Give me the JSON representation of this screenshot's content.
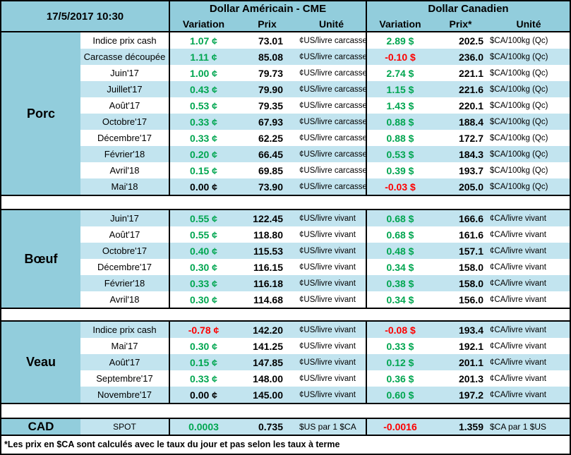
{
  "meta": {
    "datetime": "17/5/2017 10:30"
  },
  "columns": {
    "us_title": "Dollar Américain - CME",
    "ca_title": "Dollar Canadien",
    "variation": "Variation",
    "prix": "Prix",
    "prix_star": "Prix*",
    "unite": "Unité"
  },
  "colors": {
    "teal": "#92cddc",
    "stripe": "#c2e4ef",
    "positive": "#00a650",
    "negative": "#fe0000"
  },
  "sections": [
    {
      "label": "Porc",
      "rows": [
        {
          "label": "Indice prix cash",
          "us_var": "1.07 ¢",
          "us_prix": "73.01",
          "us_unit": "¢US/livre carcasse",
          "ca_var": "2.89 $",
          "ca_prix": "202.5",
          "ca_unit": "$CA/100kg (Qc)"
        },
        {
          "label": "Carcasse découpée",
          "us_var": "1.11 ¢",
          "us_prix": "85.08",
          "us_unit": "¢US/livre carcasse",
          "ca_var": "-0.10 $",
          "ca_prix": "236.0",
          "ca_unit": "$CA/100kg (Qc)"
        },
        {
          "label": "Juin'17",
          "us_var": "1.00 ¢",
          "us_prix": "79.73",
          "us_unit": "¢US/livre carcasse",
          "ca_var": "2.74 $",
          "ca_prix": "221.1",
          "ca_unit": "$CA/100kg (Qc)"
        },
        {
          "label": "Juillet'17",
          "us_var": "0.43 ¢",
          "us_prix": "79.90",
          "us_unit": "¢US/livre carcasse",
          "ca_var": "1.15 $",
          "ca_prix": "221.6",
          "ca_unit": "$CA/100kg (Qc)"
        },
        {
          "label": "Août'17",
          "us_var": "0.53 ¢",
          "us_prix": "79.35",
          "us_unit": "¢US/livre carcasse",
          "ca_var": "1.43 $",
          "ca_prix": "220.1",
          "ca_unit": "$CA/100kg (Qc)"
        },
        {
          "label": "Octobre'17",
          "us_var": "0.33 ¢",
          "us_prix": "67.93",
          "us_unit": "¢US/livre carcasse",
          "ca_var": "0.88 $",
          "ca_prix": "188.4",
          "ca_unit": "$CA/100kg (Qc)"
        },
        {
          "label": "Décembre'17",
          "us_var": "0.33 ¢",
          "us_prix": "62.25",
          "us_unit": "¢US/livre carcasse",
          "ca_var": "0.88 $",
          "ca_prix": "172.7",
          "ca_unit": "$CA/100kg (Qc)"
        },
        {
          "label": "Février'18",
          "us_var": "0.20 ¢",
          "us_prix": "66.45",
          "us_unit": "¢US/livre carcasse",
          "ca_var": "0.53 $",
          "ca_prix": "184.3",
          "ca_unit": "$CA/100kg (Qc)"
        },
        {
          "label": "Avril'18",
          "us_var": "0.15 ¢",
          "us_prix": "69.85",
          "us_unit": "¢US/livre carcasse",
          "ca_var": "0.39 $",
          "ca_prix": "193.7",
          "ca_unit": "$CA/100kg (Qc)"
        },
        {
          "label": "Mai'18",
          "us_var": "0.00 ¢",
          "us_prix": "73.90",
          "us_unit": "¢US/livre carcasse",
          "ca_var": "-0.03 $",
          "ca_prix": "205.0",
          "ca_unit": "$CA/100kg (Qc)"
        }
      ]
    },
    {
      "label": "Bœuf",
      "rows": [
        {
          "label": "Juin'17",
          "us_var": "0.55 ¢",
          "us_prix": "122.45",
          "us_unit": "¢US/livre vivant",
          "ca_var": "0.68 $",
          "ca_prix": "166.6",
          "ca_unit": "¢CA/livre vivant"
        },
        {
          "label": "Août'17",
          "us_var": "0.55 ¢",
          "us_prix": "118.80",
          "us_unit": "¢US/livre vivant",
          "ca_var": "0.68 $",
          "ca_prix": "161.6",
          "ca_unit": "¢CA/livre vivant"
        },
        {
          "label": "Octobre'17",
          "us_var": "0.40 ¢",
          "us_prix": "115.53",
          "us_unit": "¢US/livre vivant",
          "ca_var": "0.48 $",
          "ca_prix": "157.1",
          "ca_unit": "¢CA/livre vivant"
        },
        {
          "label": "Décembre'17",
          "us_var": "0.30 ¢",
          "us_prix": "116.15",
          "us_unit": "¢US/livre vivant",
          "ca_var": "0.34 $",
          "ca_prix": "158.0",
          "ca_unit": "¢CA/livre vivant"
        },
        {
          "label": "Février'18",
          "us_var": "0.33 ¢",
          "us_prix": "116.18",
          "us_unit": "¢US/livre vivant",
          "ca_var": "0.38 $",
          "ca_prix": "158.0",
          "ca_unit": "¢CA/livre vivant"
        },
        {
          "label": "Avril'18",
          "us_var": "0.30 ¢",
          "us_prix": "114.68",
          "us_unit": "¢US/livre vivant",
          "ca_var": "0.34 $",
          "ca_prix": "156.0",
          "ca_unit": "¢CA/livre vivant"
        }
      ]
    },
    {
      "label": "Veau",
      "rows": [
        {
          "label": "Indice prix cash",
          "us_var": "-0.78 ¢",
          "us_prix": "142.20",
          "us_unit": "¢US/livre vivant",
          "ca_var": "-0.08 $",
          "ca_prix": "193.4",
          "ca_unit": "¢CA/livre vivant"
        },
        {
          "label": "Mai'17",
          "us_var": "0.30 ¢",
          "us_prix": "141.25",
          "us_unit": "¢US/livre vivant",
          "ca_var": "0.33 $",
          "ca_prix": "192.1",
          "ca_unit": "¢CA/livre vivant"
        },
        {
          "label": "Août'17",
          "us_var": "0.15 ¢",
          "us_prix": "147.85",
          "us_unit": "¢US/livre vivant",
          "ca_var": "0.12 $",
          "ca_prix": "201.1",
          "ca_unit": "¢CA/livre vivant"
        },
        {
          "label": "Septembre'17",
          "us_var": "0.33 ¢",
          "us_prix": "148.00",
          "us_unit": "¢US/livre vivant",
          "ca_var": "0.36 $",
          "ca_prix": "201.3",
          "ca_unit": "¢CA/livre vivant"
        },
        {
          "label": "Novembre'17",
          "us_var": "0.00 ¢",
          "us_prix": "145.00",
          "us_unit": "¢US/livre vivant",
          "ca_var": "0.60 $",
          "ca_prix": "197.2",
          "ca_unit": "¢CA/livre vivant"
        }
      ]
    }
  ],
  "cad_row": {
    "label": "CAD",
    "term": "SPOT",
    "us_var": "0.0003",
    "us_prix": "0.735",
    "us_unit": "$US par 1 $CA",
    "ca_var": "-0.0016",
    "ca_prix": "1.359",
    "ca_unit": "$CA par 1 $US"
  },
  "footnote": "*Les prix en $CA sont calculés avec le taux du jour et pas selon les taux à terme"
}
